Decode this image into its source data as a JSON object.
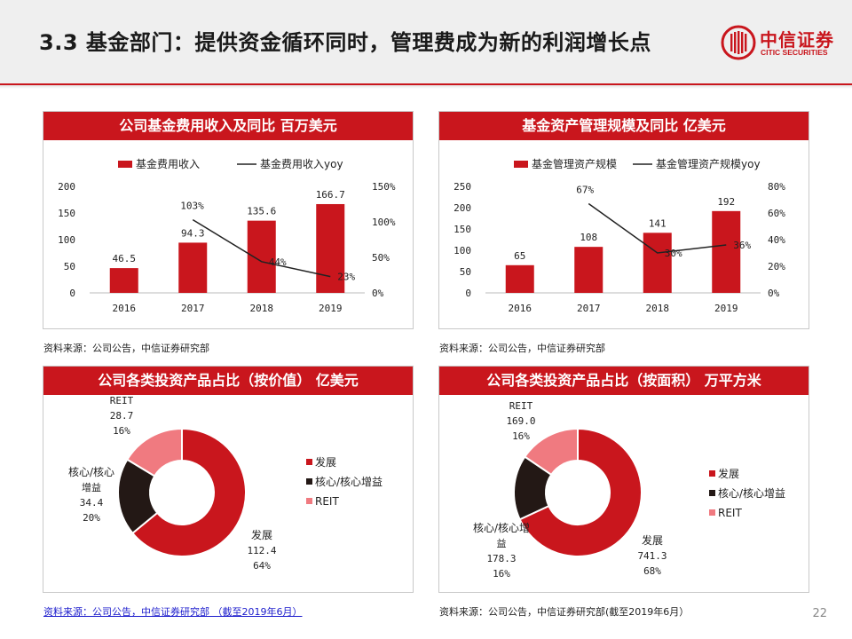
{
  "header": {
    "title": "3.3 基金部门：提供资金循环同时，管理费成为新的利润增长点",
    "logo_cn": "中信证券",
    "logo_en": "CITIC SECURITIES"
  },
  "colors": {
    "brand_red": "#c9161d",
    "dark_brown": "#231815",
    "pink": "#f07a80"
  },
  "page_number": "22",
  "chart_data": [
    {
      "type": "bar",
      "title": "公司基金费用收入及同比   百万美元",
      "categories": [
        "2016",
        "2017",
        "2018",
        "2019"
      ],
      "series": [
        {
          "name": "基金费用收入",
          "type": "bar",
          "axis": "left",
          "values": [
            46.5,
            94.3,
            135.6,
            166.7
          ],
          "labels": [
            "46.5",
            "94.3",
            "135.6",
            "166.7"
          ]
        },
        {
          "name": "基金费用收入yoy",
          "type": "line",
          "axis": "right",
          "values": [
            null,
            103,
            44,
            23
          ],
          "labels": [
            "",
            "103%",
            "44%",
            "23%"
          ]
        }
      ],
      "ylim": [
        0,
        200
      ],
      "y_ticks": [
        "0",
        "50",
        "100",
        "150",
        "200"
      ],
      "y2lim": [
        0,
        150
      ],
      "y2_ticks": [
        "0%",
        "50%",
        "100%",
        "150%"
      ],
      "legend": "top",
      "grid": false,
      "source": "资料来源：公司公告，中信证券研究部"
    },
    {
      "type": "bar",
      "title": "基金资产管理规模及同比   亿美元",
      "categories": [
        "2016",
        "2017",
        "2018",
        "2019"
      ],
      "series": [
        {
          "name": "基金管理资产规模",
          "type": "bar",
          "axis": "left",
          "values": [
            65,
            108,
            141,
            192
          ],
          "labels": [
            "65",
            "108",
            "141",
            "192"
          ]
        },
        {
          "name": "基金管理资产规模yoy",
          "type": "line",
          "axis": "right",
          "values": [
            null,
            67,
            30,
            36
          ],
          "labels": [
            "",
            "67%",
            "30%",
            "36%"
          ]
        }
      ],
      "ylim": [
        0,
        250
      ],
      "y_ticks": [
        "0",
        "50",
        "100",
        "150",
        "200",
        "250"
      ],
      "y2lim": [
        0,
        80
      ],
      "y2_ticks": [
        "0%",
        "20%",
        "40%",
        "60%",
        "80%"
      ],
      "legend": "top",
      "grid": false,
      "source": "资料来源：公司公告，中信证券研究部"
    },
    {
      "type": "pie",
      "title": "公司各类投资产品占比（按价值）  亿美元",
      "legend": "right",
      "slices": [
        {
          "name": "发展",
          "value": 112.4,
          "pct": 64,
          "color": "#c9161d",
          "label": [
            "发展",
            "112.4",
            "64%"
          ]
        },
        {
          "name": "核心/核心增益",
          "value": 34.4,
          "pct": 20,
          "color": "#231815",
          "label": [
            "核心/核心",
            "增益",
            "34.4",
            "20%"
          ]
        },
        {
          "name": "REIT",
          "value": 28.7,
          "pct": 16,
          "color": "#f07a80",
          "label": [
            "REIT",
            "28.7",
            "16%"
          ]
        }
      ],
      "source": "资料来源：公司公告，中信证券研究部 （截至2019年6月）"
    },
    {
      "type": "pie",
      "title": "公司各类投资产品占比（按面积） 万平方米",
      "legend": "right",
      "slices": [
        {
          "name": "发展",
          "value": 741.3,
          "pct": 68,
          "color": "#c9161d",
          "label": [
            "发展",
            "741.3",
            "68%"
          ]
        },
        {
          "name": "核心/核心增益",
          "value": 178.3,
          "pct": 16,
          "color": "#231815",
          "label": [
            "核心/核心增",
            "益",
            "178.3",
            "16%"
          ]
        },
        {
          "name": "REIT",
          "value": 169.0,
          "pct": 16,
          "color": "#f07a80",
          "label": [
            "REIT",
            "169.0",
            "16%"
          ]
        }
      ],
      "source": "资料来源：公司公告，中信证券研究部(截至2019年6月）"
    }
  ]
}
